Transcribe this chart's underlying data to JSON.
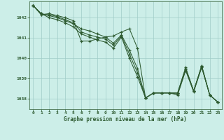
{
  "title": "Graphe pression niveau de la mer (hPa)",
  "bg_color": "#cceee8",
  "plot_bg_color": "#cceee8",
  "grid_color": "#a0ccc8",
  "line_color": "#2d5a30",
  "xlim": [
    -0.5,
    23.5
  ],
  "ylim": [
    1037.5,
    1042.8
  ],
  "yticks": [
    1038,
    1039,
    1040,
    1041,
    1042
  ],
  "xticks": [
    0,
    1,
    2,
    3,
    4,
    5,
    6,
    7,
    8,
    9,
    10,
    11,
    12,
    13,
    14,
    15,
    16,
    17,
    18,
    19,
    20,
    21,
    22,
    23
  ],
  "series": [
    [
      1042.6,
      1042.2,
      1042.1,
      1042.0,
      1041.85,
      1041.7,
      1041.45,
      1041.35,
      1041.2,
      1041.05,
      1040.75,
      1041.15,
      1040.4,
      1039.5,
      1038.05,
      1038.3,
      1038.3,
      1038.3,
      1038.3,
      1039.5,
      1038.4,
      1039.6,
      1038.2,
      1037.85
    ],
    [
      1042.6,
      1042.2,
      1042.0,
      1041.9,
      1041.75,
      1041.55,
      1041.2,
      1041.05,
      1040.9,
      1040.8,
      1040.5,
      1041.05,
      1040.0,
      1039.1,
      1038.05,
      1038.3,
      1038.3,
      1038.3,
      1038.2,
      1039.4,
      1038.35,
      1039.55,
      1038.2,
      1037.85
    ],
    [
      1042.6,
      1042.15,
      1042.15,
      1042.05,
      1041.9,
      1041.75,
      1041.3,
      1041.15,
      1041.05,
      1040.95,
      1040.65,
      1041.1,
      1040.2,
      1039.3,
      1038.05,
      1038.3,
      1038.3,
      1038.3,
      1038.25,
      1039.45,
      1038.4,
      1039.6,
      1038.2,
      1037.85
    ],
    [
      1042.6,
      1042.15,
      1042.2,
      1042.1,
      1042.0,
      1041.85,
      1040.85,
      1040.85,
      1040.95,
      1041.05,
      1041.1,
      1041.3,
      1041.45,
      1040.5,
      1038.05,
      1038.3,
      1038.3,
      1038.3,
      1038.3,
      1039.55,
      1038.4,
      1039.65,
      1038.2,
      1037.85
    ]
  ]
}
